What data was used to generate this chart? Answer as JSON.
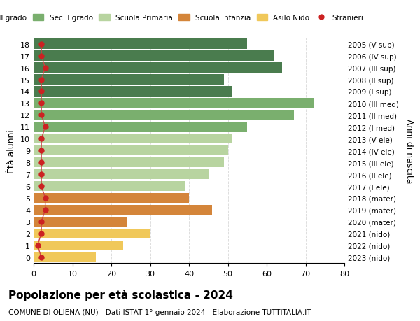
{
  "ages": [
    18,
    17,
    16,
    15,
    14,
    13,
    12,
    11,
    10,
    9,
    8,
    7,
    6,
    5,
    4,
    3,
    2,
    1,
    0
  ],
  "values": [
    55,
    62,
    64,
    49,
    51,
    72,
    67,
    55,
    51,
    50,
    49,
    45,
    39,
    40,
    46,
    24,
    30,
    23,
    16
  ],
  "stranieri": [
    2,
    2,
    3,
    2,
    2,
    2,
    2,
    3,
    2,
    2,
    2,
    2,
    2,
    3,
    3,
    2,
    2,
    1,
    2
  ],
  "bar_colors": [
    "#4a7c4e",
    "#4a7c4e",
    "#4a7c4e",
    "#4a7c4e",
    "#4a7c4e",
    "#7aaf6e",
    "#7aaf6e",
    "#7aaf6e",
    "#b8d4a0",
    "#b8d4a0",
    "#b8d4a0",
    "#b8d4a0",
    "#b8d4a0",
    "#d4853a",
    "#d4853a",
    "#d4853a",
    "#f0c85a",
    "#f0c85a",
    "#f0c85a"
  ],
  "right_labels": [
    "2005 (V sup)",
    "2006 (IV sup)",
    "2007 (III sup)",
    "2008 (II sup)",
    "2009 (I sup)",
    "2010 (III med)",
    "2011 (II med)",
    "2012 (I med)",
    "2013 (V ele)",
    "2014 (IV ele)",
    "2015 (III ele)",
    "2016 (II ele)",
    "2017 (I ele)",
    "2018 (mater)",
    "2019 (mater)",
    "2020 (mater)",
    "2021 (nido)",
    "2022 (nido)",
    "2023 (nido)"
  ],
  "legend_labels": [
    "Sec. II grado",
    "Sec. I grado",
    "Scuola Primaria",
    "Scuola Infanzia",
    "Asilo Nido",
    "Stranieri"
  ],
  "legend_colors": [
    "#4a7c4e",
    "#7aaf6e",
    "#b8d4a0",
    "#d4853a",
    "#f0c85a",
    "#cc2222"
  ],
  "ylabel_left": "Ètà alunni",
  "ylabel_right": "Anni di nascita",
  "title": "Popolazione per età scolastica - 2024",
  "subtitle": "COMUNE DI OLIENA (NU) - Dati ISTAT 1° gennaio 2024 - Elaborazione TUTTITALIA.IT",
  "xlim": [
    0,
    80
  ],
  "xticks": [
    0,
    10,
    20,
    30,
    40,
    50,
    60,
    70,
    80
  ],
  "stranieri_color": "#cc2222",
  "stranieri_line_color": "#cc4444",
  "background_color": "#ffffff",
  "grid_color": "#dddddd"
}
